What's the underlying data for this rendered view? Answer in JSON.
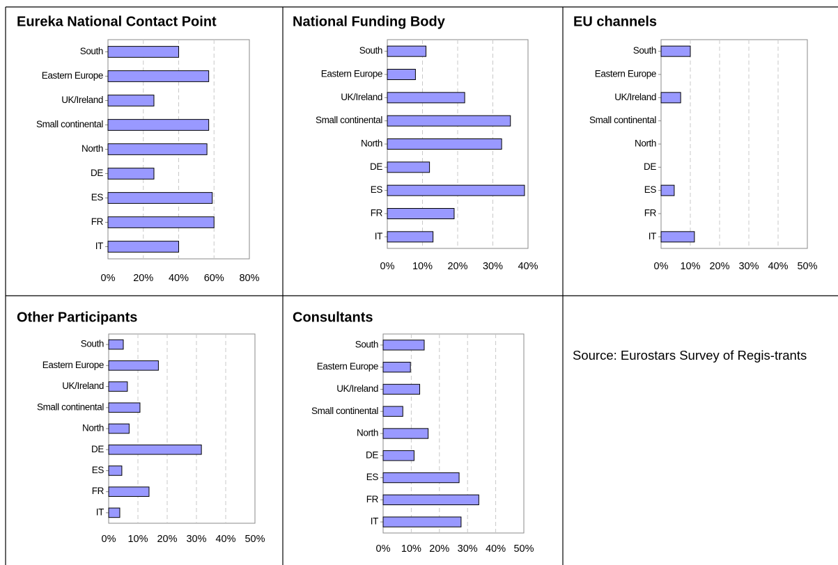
{
  "chart_data": [
    {
      "type": "bar",
      "orientation": "horizontal",
      "title": "Eureka National Contact Point",
      "categories": [
        "South",
        "Eastern Europe",
        "UK/Ireland",
        "Small continental",
        "North",
        "DE",
        "ES",
        "FR",
        "IT"
      ],
      "values": [
        40,
        57,
        26,
        57,
        56,
        26,
        59,
        60,
        40
      ],
      "color": "#9999ff",
      "xlim": [
        0,
        80
      ],
      "xticks": [
        {
          "value": 0,
          "label": "0%"
        },
        {
          "value": 20,
          "label": "20%"
        },
        {
          "value": 40,
          "label": "40%"
        },
        {
          "value": 60,
          "label": "60%"
        },
        {
          "value": 80,
          "label": "80%"
        }
      ],
      "grid": true
    },
    {
      "type": "bar",
      "orientation": "horizontal",
      "title": "National Funding Body",
      "categories": [
        "South",
        "Eastern Europe",
        "UK/Ireland",
        "Small continental",
        "North",
        "DE",
        "ES",
        "FR",
        "IT"
      ],
      "values": [
        11,
        8,
        22,
        35,
        32.5,
        12,
        39,
        19,
        13
      ],
      "color": "#9999ff",
      "xlim": [
        0,
        40
      ],
      "xticks": [
        {
          "value": 0,
          "label": "0%"
        },
        {
          "value": 10,
          "label": "10%"
        },
        {
          "value": 20,
          "label": "20%"
        },
        {
          "value": 30,
          "label": "30%"
        },
        {
          "value": 40,
          "label": "40%"
        }
      ],
      "grid": true
    },
    {
      "type": "bar",
      "orientation": "horizontal",
      "title": "EU channels",
      "categories": [
        "South",
        "Eastern Europe",
        "UK/Ireland",
        "Small continental",
        "North",
        "DE",
        "ES",
        "FR",
        "IT"
      ],
      "values": [
        10,
        0,
        6.7,
        0,
        0,
        0,
        4.5,
        0,
        11.4
      ],
      "color": "#9999ff",
      "xlim": [
        0,
        50
      ],
      "xticks": [
        {
          "value": 0,
          "label": "0%"
        },
        {
          "value": 10,
          "label": "10%"
        },
        {
          "value": 20,
          "label": "20%"
        },
        {
          "value": 30,
          "label": "30%"
        },
        {
          "value": 40,
          "label": "40%"
        },
        {
          "value": 50,
          "label": "50%"
        }
      ],
      "grid": true
    },
    {
      "type": "bar",
      "orientation": "horizontal",
      "title": "Other Participants",
      "categories": [
        "South",
        "Eastern Europe",
        "UK/Ireland",
        "Small continental",
        "North",
        "DE",
        "ES",
        "FR",
        "IT"
      ],
      "values": [
        5,
        17,
        6.4,
        10.7,
        7,
        31.7,
        4.5,
        13.8,
        3.8
      ],
      "color": "#9999ff",
      "xlim": [
        0,
        50
      ],
      "xticks": [
        {
          "value": 0,
          "label": "0%"
        },
        {
          "value": 10,
          "label": "10%"
        },
        {
          "value": 20,
          "label": "20%"
        },
        {
          "value": 30,
          "label": "30%"
        },
        {
          "value": 40,
          "label": "40%"
        },
        {
          "value": 50,
          "label": "50%"
        }
      ],
      "grid": true
    },
    {
      "type": "bar",
      "orientation": "horizontal",
      "title": "Consultants",
      "categories": [
        "South",
        "Eastern Europe",
        "UK/Ireland",
        "Small continental",
        "North",
        "DE",
        "ES",
        "FR",
        "IT"
      ],
      "values": [
        14.6,
        9.7,
        13,
        7,
        16,
        11,
        27,
        34,
        27.7
      ],
      "color": "#9999ff",
      "xlim": [
        0,
        50
      ],
      "xticks": [
        {
          "value": 0,
          "label": "0%"
        },
        {
          "value": 10,
          "label": "10%"
        },
        {
          "value": 20,
          "label": "20%"
        },
        {
          "value": 30,
          "label": "30%"
        },
        {
          "value": 40,
          "label": "40%"
        },
        {
          "value": 50,
          "label": "50%"
        }
      ],
      "grid": true
    }
  ],
  "source": "Source: Eurostars Survey of Regis-trants"
}
